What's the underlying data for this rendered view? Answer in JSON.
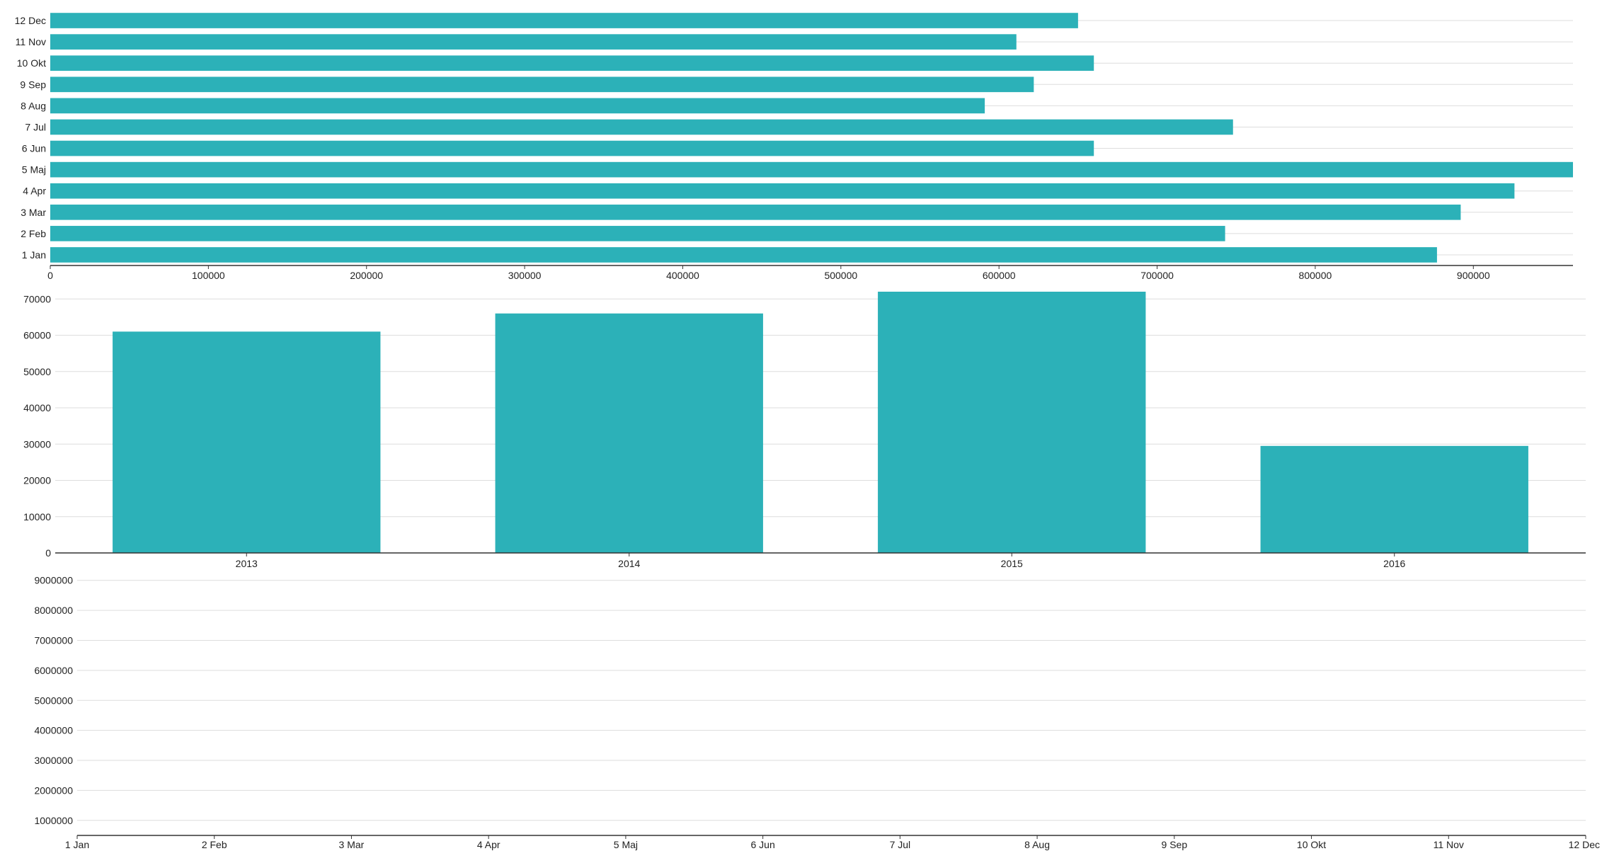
{
  "colors": {
    "bar": "#2cb1b8",
    "grid": "#dddddd",
    "axis": "#333333",
    "text": "#222222"
  },
  "chart_data": [
    {
      "type": "bar",
      "orientation": "horizontal",
      "categories": [
        "1 Jan",
        "2 Feb",
        "3 Mar",
        "4 Apr",
        "5 Maj",
        "6 Jun",
        "7 Jul",
        "8 Aug",
        "9 Sep",
        "10 Okt",
        "11 Nov",
        "12 Dec"
      ],
      "values": [
        877000,
        743000,
        892000,
        926000,
        963000,
        660000,
        748000,
        591000,
        622000,
        660000,
        611000,
        650000
      ],
      "xlim": [
        0,
        963000
      ],
      "xticks": [
        0,
        100000,
        200000,
        300000,
        400000,
        500000,
        600000,
        700000,
        800000,
        900000
      ],
      "grid": true
    },
    {
      "type": "bar",
      "categories": [
        "2013",
        "2014",
        "2015",
        "2016"
      ],
      "values": [
        61000,
        66000,
        72000,
        29500
      ],
      "ylim": [
        0,
        72000
      ],
      "yticks": [
        0,
        10000,
        20000,
        30000,
        40000,
        50000,
        60000,
        70000
      ],
      "grid": true
    },
    {
      "type": "line",
      "categories": [
        "1 Jan",
        "2 Feb",
        "3 Mar",
        "4 Apr",
        "5 Maj",
        "6 Jun",
        "7 Jul",
        "8 Aug",
        "9 Sep",
        "10 Okt",
        "11 Nov",
        "12 Dec"
      ],
      "series": [],
      "ylim": [
        500000,
        9300000
      ],
      "yticks": [
        1000000,
        2000000,
        3000000,
        4000000,
        5000000,
        6000000,
        7000000,
        8000000,
        9000000
      ],
      "grid": true
    }
  ]
}
